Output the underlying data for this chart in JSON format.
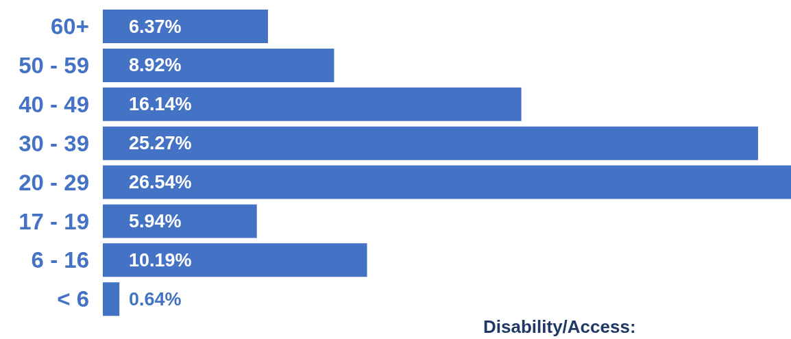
{
  "chart_data": {
    "type": "bar",
    "orientation": "horizontal",
    "categories": [
      "60+",
      "50 - 59",
      "40 - 49",
      "30 - 39",
      "20 - 29",
      "17 - 19",
      "6 - 16",
      "< 6"
    ],
    "values": [
      6.37,
      8.92,
      16.14,
      25.27,
      26.54,
      5.94,
      10.19,
      0.64
    ],
    "value_labels": [
      "6.37%",
      "8.92%",
      "16.14%",
      "25.27%",
      "26.54%",
      "5.94%",
      "10.19%",
      "0.64%"
    ],
    "color": "#4472c4",
    "grid": false,
    "legend": false,
    "annotations": [
      "Disability/Access:"
    ]
  }
}
